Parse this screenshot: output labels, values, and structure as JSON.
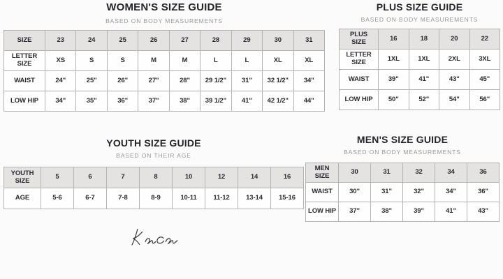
{
  "brand": {
    "signature": "KanCan"
  },
  "colors": {
    "header_bg": "#e5e2e2",
    "table_border": "#b5b2b2",
    "title_text": "#26242b",
    "subtitle_text": "#9b9794",
    "cell_text": "#2b2a31",
    "signature_ink": "#3f3742",
    "page_bg": "#fcfbfb"
  },
  "guides": [
    {
      "id": "womens",
      "title": "WOMEN'S SIZE GUIDE",
      "subtitle": "BASED ON BODY MEASUREMENTS",
      "rows": [
        [
          "SIZE",
          "23",
          "24",
          "25",
          "26",
          "27",
          "28",
          "29",
          "30",
          "31"
        ],
        [
          "LETTER\nSIZE",
          "XS",
          "S",
          "S",
          "M",
          "M",
          "L",
          "L",
          "XL",
          "XL"
        ],
        [
          "WAIST",
          "24\"",
          "25\"",
          "26\"",
          "27\"",
          "28\"",
          "29 1/2\"",
          "31\"",
          "32 1/2\"",
          "34\""
        ],
        [
          "LOW HIP",
          "34\"",
          "35\"",
          "36\"",
          "37\"",
          "38\"",
          "39 1/2\"",
          "41\"",
          "42 1/2\"",
          "44\""
        ]
      ]
    },
    {
      "id": "plus",
      "title": "PLUS SIZE GUIDE",
      "subtitle": "BASED ON BODY MEASUREMENTS",
      "rows": [
        [
          "PLUS\nSIZE",
          "16",
          "18",
          "20",
          "22"
        ],
        [
          "LETTER\nSIZE",
          "1XL",
          "1XL",
          "2XL",
          "3XL"
        ],
        [
          "WAIST",
          "39\"",
          "41\"",
          "43\"",
          "45\""
        ],
        [
          "LOW HIP",
          "50\"",
          "52\"",
          "54\"",
          "56\""
        ]
      ]
    },
    {
      "id": "youth",
      "title": "YOUTH SIZE GUIDE",
      "subtitle": "BASED ON THEIR AGE",
      "rows": [
        [
          "YOUTH\nSIZE",
          "5",
          "6",
          "7",
          "8",
          "10",
          "12",
          "14",
          "16"
        ],
        [
          "AGE",
          "5-6",
          "6-7",
          "7-8",
          "8-9",
          "10-11",
          "11-12",
          "13-14",
          "15-16"
        ]
      ]
    },
    {
      "id": "mens",
      "title": "MEN'S SIZE GUIDE",
      "subtitle": "BASED ON BODY MEASUREMENTS",
      "rows": [
        [
          "MEN\nSIZE",
          "30",
          "31",
          "32",
          "34",
          "36"
        ],
        [
          "WAIST",
          "30\"",
          "31\"",
          "32\"",
          "34\"",
          "36\""
        ],
        [
          "LOW HIP",
          "37\"",
          "38\"",
          "39\"",
          "41\"",
          "43\""
        ]
      ]
    }
  ]
}
